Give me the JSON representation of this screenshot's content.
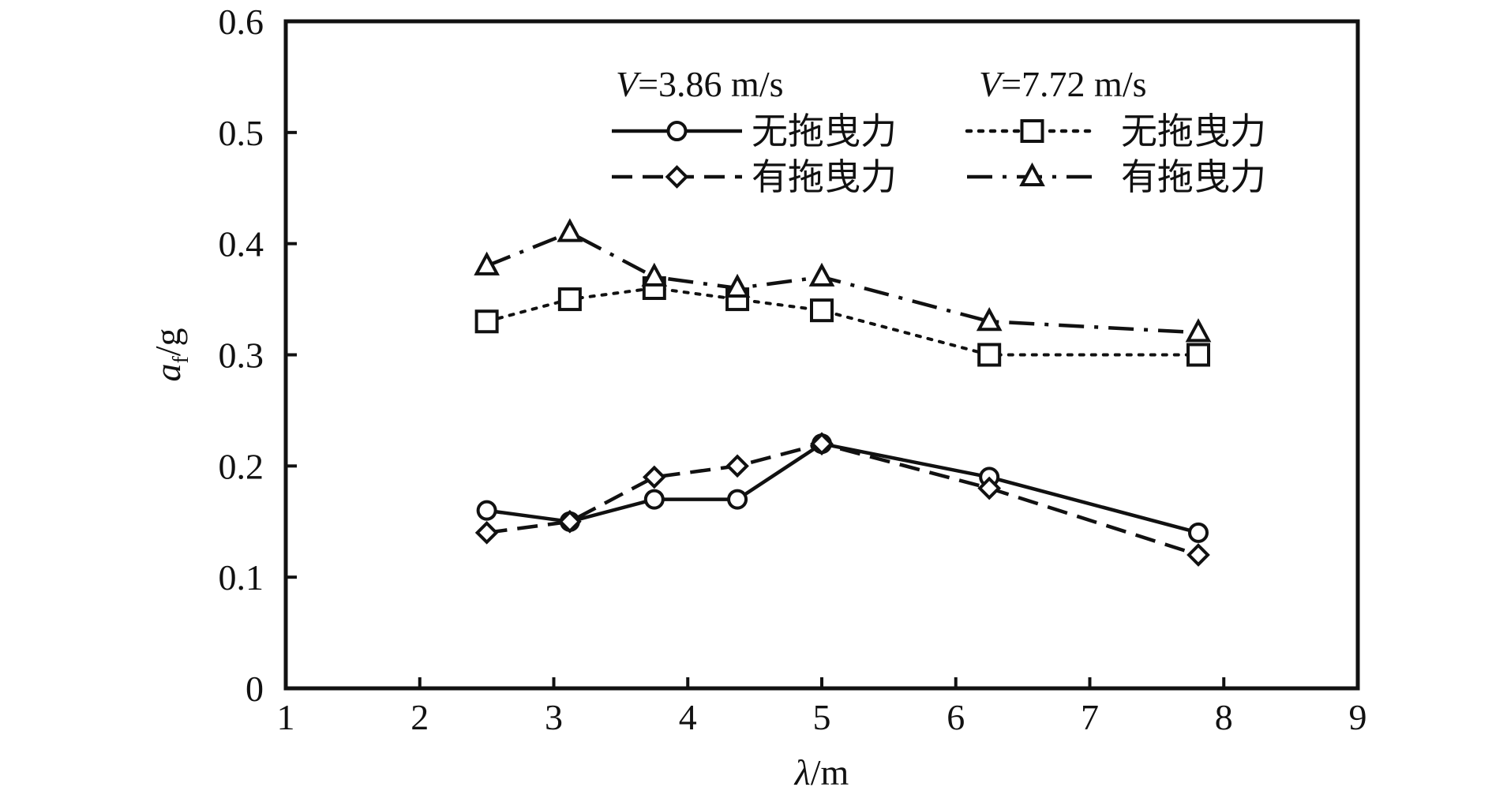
{
  "chart_data": {
    "type": "line",
    "xlabel": "λ/m",
    "ylabel": "a_f/g",
    "xlim": [
      1,
      9
    ],
    "ylim": [
      0,
      0.6
    ],
    "xticks": [
      "1",
      "2",
      "3",
      "4",
      "5",
      "6",
      "7",
      "8",
      "9"
    ],
    "yticks": [
      "0",
      "0.1",
      "0.2",
      "0.3",
      "0.4",
      "0.5",
      "0.6"
    ],
    "grid": false,
    "legend": {
      "placement": "top-right",
      "groups": [
        {
          "title_var": "V",
          "title_rest": "=3.86 m/s"
        },
        {
          "title_var": "V",
          "title_rest": "=7.72 m/s"
        }
      ]
    },
    "series": [
      {
        "name": "无拖曳力",
        "group": 0,
        "line": "solid",
        "marker": "circle",
        "x": [
          2.5,
          3.12,
          3.75,
          4.37,
          5.0,
          6.25,
          7.81
        ],
        "y": [
          0.16,
          0.15,
          0.17,
          0.17,
          0.22,
          0.19,
          0.14
        ]
      },
      {
        "name": "有拖曳力",
        "group": 0,
        "line": "dashed",
        "marker": "diamond",
        "x": [
          2.5,
          3.12,
          3.75,
          4.37,
          5.0,
          6.25,
          7.81
        ],
        "y": [
          0.14,
          0.15,
          0.19,
          0.2,
          0.22,
          0.18,
          0.12
        ]
      },
      {
        "name": "无拖曳力",
        "group": 1,
        "line": "dotted",
        "marker": "square",
        "x": [
          2.5,
          3.12,
          3.75,
          4.37,
          5.0,
          6.25,
          7.81
        ],
        "y": [
          0.33,
          0.35,
          0.36,
          0.35,
          0.34,
          0.3,
          0.3
        ]
      },
      {
        "name": "有拖曳力",
        "group": 1,
        "line": "dashdot",
        "marker": "triangle",
        "x": [
          2.5,
          3.12,
          3.75,
          4.37,
          5.0,
          6.25,
          7.81
        ],
        "y": [
          0.38,
          0.41,
          0.37,
          0.36,
          0.37,
          0.33,
          0.32
        ]
      }
    ]
  }
}
